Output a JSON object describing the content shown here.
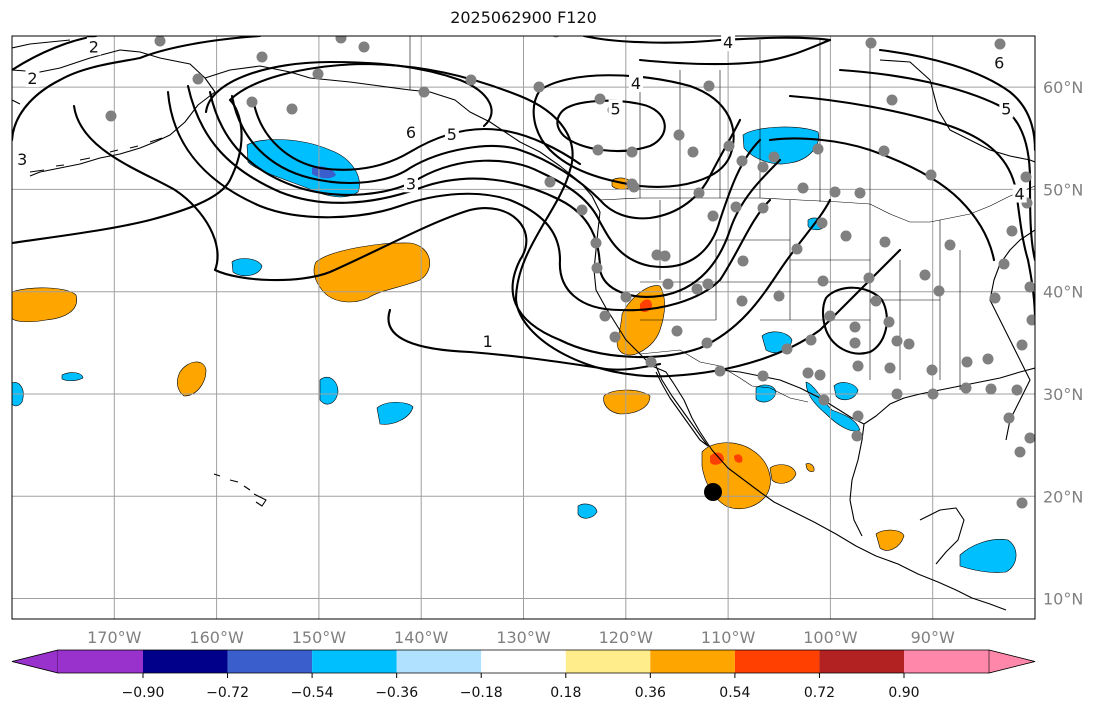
{
  "title": "2025062900 F120",
  "map": {
    "lon_range": [
      -180,
      -80
    ],
    "lat_range": [
      8,
      65
    ],
    "gridline_color": "#a0a0a0",
    "coast_color": "#000000",
    "lat_labels": [
      {
        "lat": 60,
        "label": "60°N"
      },
      {
        "lat": 50,
        "label": "50°N"
      },
      {
        "lat": 40,
        "label": "40°N"
      },
      {
        "lat": 30,
        "label": "30°N"
      },
      {
        "lat": 20,
        "label": "20°N"
      },
      {
        "lat": 10,
        "label": "10°N"
      }
    ],
    "lon_labels": [
      {
        "lon": -170,
        "label": "170°W"
      },
      {
        "lon": -160,
        "label": "160°W"
      },
      {
        "lon": -150,
        "label": "150°W"
      },
      {
        "lon": -140,
        "label": "140°W"
      },
      {
        "lon": -130,
        "label": "130°W"
      },
      {
        "lon": -120,
        "label": "120°W"
      },
      {
        "lon": -110,
        "label": "110°W"
      },
      {
        "lon": -100,
        "label": "100°W"
      },
      {
        "lon": -90,
        "label": "90°W"
      }
    ],
    "contour_labels": [
      {
        "text": "2",
        "lon": -178,
        "lat": 60.8
      },
      {
        "text": "2",
        "lon": -172,
        "lat": 63.9
      },
      {
        "text": "3",
        "lon": -179,
        "lat": 52.9
      },
      {
        "text": "6",
        "lon": -141,
        "lat": 55.5
      },
      {
        "text": "5",
        "lon": -137,
        "lat": 55.3
      },
      {
        "text": "3",
        "lon": -141,
        "lat": 50.5
      },
      {
        "text": "4",
        "lon": -119,
        "lat": 60.3
      },
      {
        "text": "5",
        "lon": -121,
        "lat": 57.8
      },
      {
        "text": "4",
        "lon": -110,
        "lat": 64.3
      },
      {
        "text": "6",
        "lon": -83.5,
        "lat": 62.3
      },
      {
        "text": "5",
        "lon": -82.8,
        "lat": 57.8
      },
      {
        "text": "4",
        "lon": -81.5,
        "lat": 49.5
      },
      {
        "text": "1",
        "lon": -133.5,
        "lat": 35.1
      }
    ],
    "marker_color": "#808080",
    "highlight_marker_color": "#000000"
  },
  "colorbar": {
    "colors": [
      "#9932cc",
      "#00008b",
      "#3a5fcd",
      "#00bfff",
      "#b0e2ff",
      "#ffffff",
      "#ffec8b",
      "#ffa500",
      "#ff4000",
      "#b22222",
      "#ff88aa"
    ],
    "tick_values": [
      -0.9,
      -0.72,
      -0.54,
      -0.36,
      -0.18,
      0.18,
      0.36,
      0.54,
      0.72,
      0.9
    ],
    "tick_labels": [
      "−0.90",
      "−0.72",
      "−0.54",
      "−0.36",
      "−0.18",
      "0.18",
      "0.36",
      "0.54",
      "0.72",
      "0.90"
    ]
  }
}
